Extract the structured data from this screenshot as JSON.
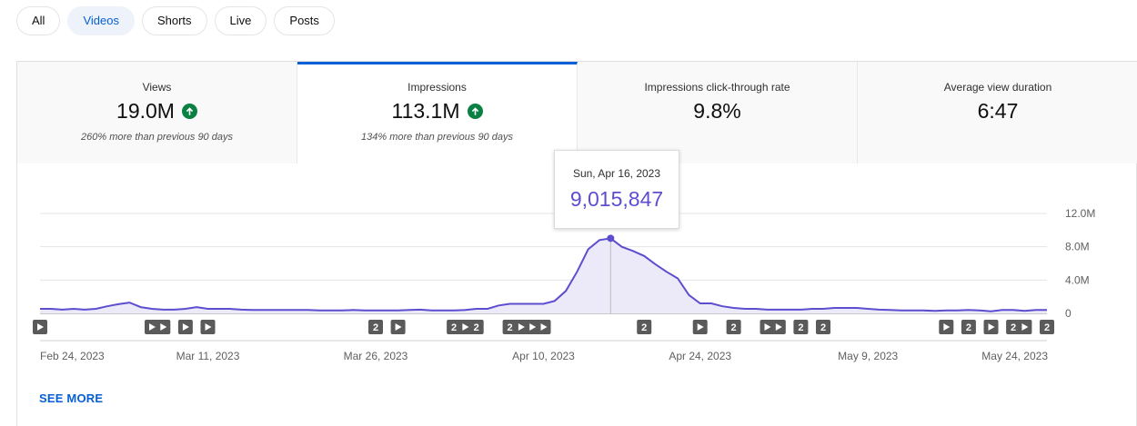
{
  "chips": [
    "All",
    "Videos",
    "Shorts",
    "Live",
    "Posts"
  ],
  "active_chip": "Videos",
  "metrics": [
    {
      "label": "Views",
      "value": "19.0M",
      "trend": "up",
      "sub": "260% more than previous 90 days"
    },
    {
      "label": "Impressions",
      "value": "113.1M",
      "trend": "up",
      "sub": "134% more than previous 90 days"
    },
    {
      "label": "Impressions click-through rate",
      "value": "9.8%",
      "trend": "",
      "sub": ""
    },
    {
      "label": "Average view duration",
      "value": "6:47",
      "trend": "",
      "sub": ""
    }
  ],
  "active_metric": "Impressions",
  "tooltip": {
    "date": "Sun, Apr 16, 2023",
    "value": "9,015,847"
  },
  "see_more": "SEE MORE",
  "colors": {
    "accent": "#065fd4",
    "line": "#5c4ecf",
    "up": "#0b8043"
  },
  "chart_data": {
    "type": "area",
    "x_start": "2023-02-24",
    "x_end": "2023-05-26",
    "x_ticks": [
      "Feb 24, 2023",
      "Mar 11, 2023",
      "Mar 26, 2023",
      "Apr 10, 2023",
      "Apr 24, 2023",
      "May 9, 2023",
      "May 24, 2023"
    ],
    "y_ticks": [
      "12.0M",
      "8.0M",
      "4.0M",
      "0"
    ],
    "ylim": [
      0,
      12000000
    ],
    "grid": true,
    "highlight": {
      "x": "Apr 16, 2023",
      "value": 9015847
    },
    "series": [
      {
        "x": [
          "Feb 24",
          "Feb 25",
          "Feb 26",
          "Feb 27",
          "Feb 28",
          "Mar 1",
          "Mar 2",
          "Mar 3",
          "Mar 4",
          "Mar 5",
          "Mar 6",
          "Mar 7",
          "Mar 8",
          "Mar 9",
          "Mar 10",
          "Mar 11",
          "Mar 12",
          "Mar 13",
          "Mar 14",
          "Mar 15",
          "Mar 16",
          "Mar 17",
          "Mar 18",
          "Mar 19",
          "Mar 20",
          "Mar 21",
          "Mar 22",
          "Mar 23",
          "Mar 24",
          "Mar 25",
          "Mar 26",
          "Mar 27",
          "Mar 28",
          "Mar 29",
          "Mar 30",
          "Mar 31",
          "Apr 1",
          "Apr 2",
          "Apr 3",
          "Apr 4",
          "Apr 5",
          "Apr 6",
          "Apr 7",
          "Apr 8",
          "Apr 9",
          "Apr 10",
          "Apr 11",
          "Apr 12",
          "Apr 13",
          "Apr 14",
          "Apr 15",
          "Apr 16",
          "Apr 17",
          "Apr 18",
          "Apr 19",
          "Apr 20",
          "Apr 21",
          "Apr 22",
          "Apr 23",
          "Apr 24",
          "Apr 25",
          "Apr 26",
          "Apr 27",
          "Apr 28",
          "Apr 29",
          "Apr 30",
          "May 1",
          "May 2",
          "May 3",
          "May 4",
          "May 5",
          "May 6",
          "May 7",
          "May 8",
          "May 9",
          "May 10",
          "May 11",
          "May 12",
          "May 13",
          "May 14",
          "May 15",
          "May 16",
          "May 17",
          "May 18",
          "May 19",
          "May 20",
          "May 21",
          "May 22",
          "May 23",
          "May 24",
          "May 25"
        ],
        "values": [
          550000,
          550000,
          450000,
          550000,
          450000,
          550000,
          850000,
          1100000,
          1300000,
          750000,
          550000,
          450000,
          450000,
          550000,
          750000,
          550000,
          550000,
          550000,
          450000,
          400000,
          400000,
          400000,
          400000,
          400000,
          400000,
          350000,
          350000,
          350000,
          400000,
          350000,
          350000,
          350000,
          350000,
          400000,
          450000,
          350000,
          350000,
          350000,
          400000,
          550000,
          550000,
          950000,
          1150000,
          1150000,
          1150000,
          1150000,
          1500000,
          2700000,
          5000000,
          7700000,
          8800000,
          9015847,
          8000000,
          7500000,
          6900000,
          5900000,
          5000000,
          4200000,
          2200000,
          1200000,
          1200000,
          850000,
          650000,
          550000,
          550000,
          450000,
          450000,
          450000,
          450000,
          550000,
          550000,
          650000,
          650000,
          650000,
          550000,
          450000,
          400000,
          350000,
          350000,
          350000,
          300000,
          350000,
          350000,
          400000,
          350000,
          250000,
          400000,
          400000,
          300000,
          400000,
          400000
        ]
      }
    ],
    "markers": [
      {
        "date": "Feb 24",
        "label": ""
      },
      {
        "date": "Mar 6",
        "label": ""
      },
      {
        "date": "Mar 7",
        "label": ""
      },
      {
        "date": "Mar 9",
        "label": ""
      },
      {
        "date": "Mar 11",
        "label": ""
      },
      {
        "date": "Mar 26",
        "label": "2"
      },
      {
        "date": "Mar 28",
        "label": ""
      },
      {
        "date": "Apr 2",
        "label": "2"
      },
      {
        "date": "Apr 3",
        "label": ""
      },
      {
        "date": "Apr 4",
        "label": "2"
      },
      {
        "date": "Apr 7",
        "label": "2"
      },
      {
        "date": "Apr 8",
        "label": ""
      },
      {
        "date": "Apr 9",
        "label": ""
      },
      {
        "date": "Apr 10",
        "label": ""
      },
      {
        "date": "Apr 19",
        "label": "2"
      },
      {
        "date": "Apr 24",
        "label": ""
      },
      {
        "date": "Apr 27",
        "label": "2"
      },
      {
        "date": "Apr 30",
        "label": ""
      },
      {
        "date": "May 1",
        "label": ""
      },
      {
        "date": "May 3",
        "label": "2"
      },
      {
        "date": "May 5",
        "label": "2"
      },
      {
        "date": "May 16",
        "label": ""
      },
      {
        "date": "May 18",
        "label": "2"
      },
      {
        "date": "May 20",
        "label": ""
      },
      {
        "date": "May 22",
        "label": "2"
      },
      {
        "date": "May 23",
        "label": ""
      },
      {
        "date": "May 25",
        "label": "2"
      }
    ]
  }
}
